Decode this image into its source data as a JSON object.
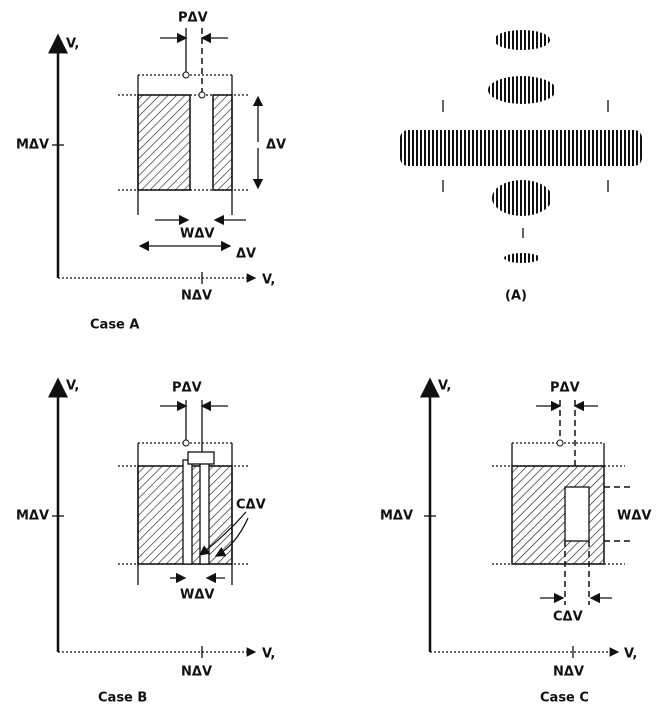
{
  "case_a": {
    "y_axis": "V,",
    "x_axis": "V,",
    "p_label": "PΔV",
    "m_label": "MΔV",
    "height_label": "ΔV",
    "w_label": "WΔV",
    "width_label": "ΔV",
    "n_label": "NΔV",
    "caption": "Case A"
  },
  "pattern": {
    "caption": "(A)"
  },
  "case_b": {
    "y_axis": "V,",
    "x_axis": "V,",
    "p_label": "PΔV",
    "m_label": "MΔV",
    "c_label": "CΔV",
    "w_label": "WΔV",
    "n_label": "NΔV",
    "caption": "Case B"
  },
  "case_c": {
    "y_axis": "V,",
    "x_axis": "V,",
    "p_label": "PΔV",
    "m_label": "MΔV",
    "w_label": "WΔV",
    "c_label": "CΔV",
    "n_label": "NΔV",
    "caption": "Case C"
  }
}
